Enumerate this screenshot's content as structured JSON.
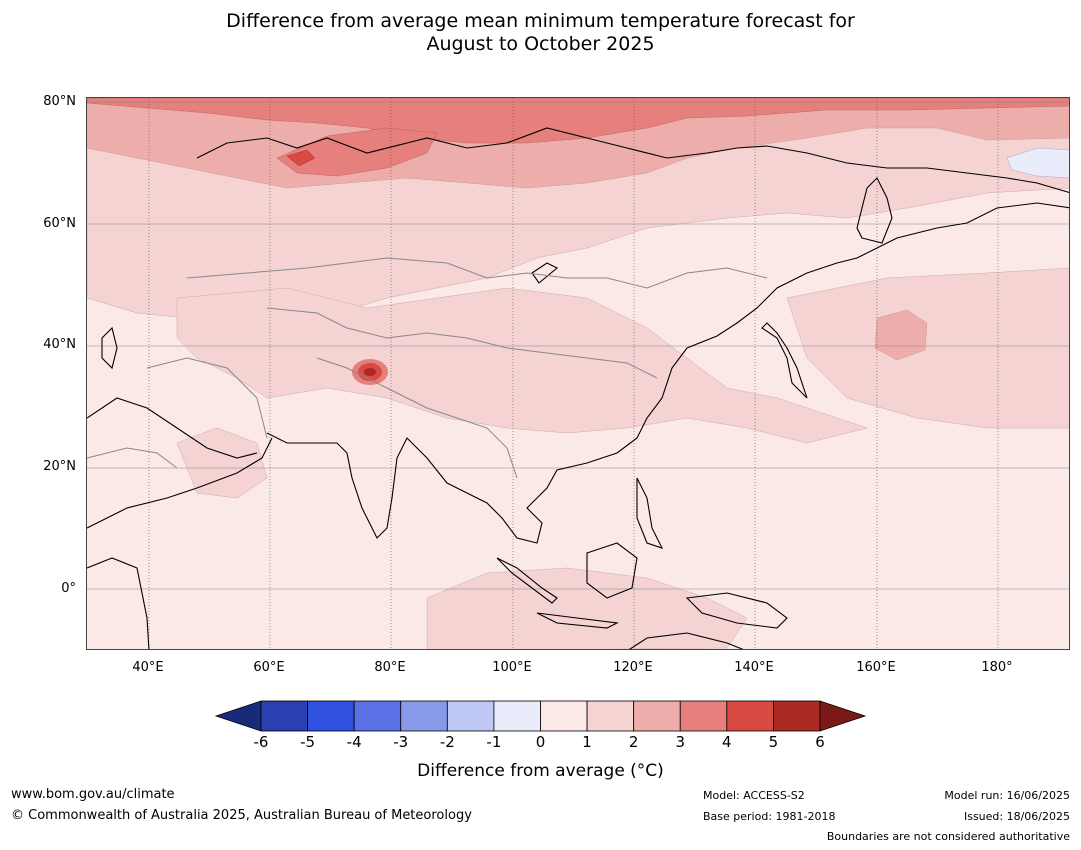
{
  "title_line1": "Difference from average mean minimum temperature forecast for",
  "title_line2": "August to October 2025",
  "lat_labels": [
    "80°N",
    "60°N",
    "40°N",
    "20°N",
    "0°"
  ],
  "lon_labels": [
    "40°E",
    "60°E",
    "80°E",
    "100°E",
    "120°E",
    "140°E",
    "160°E",
    "180°"
  ],
  "colorbar": {
    "ticks": [
      "-6",
      "-5",
      "-4",
      "-3",
      "-2",
      "-1",
      "0",
      "1",
      "2",
      "3",
      "4",
      "5",
      "6"
    ],
    "colors": [
      "#1a2a7a",
      "#2a3fb0",
      "#3050e0",
      "#5a72e6",
      "#8899ea",
      "#bfc8f4",
      "#e8ecfb",
      "#fbe9e8",
      "#f4d3d2",
      "#edaeab",
      "#e5807c",
      "#d94a42",
      "#a82a23",
      "#7a1a17"
    ],
    "label": "Difference from average (°C)"
  },
  "footer": {
    "url": "www.bom.gov.au/climate",
    "copyright": "© Commonwealth of Australia 2025, Australian Bureau of Meteorology",
    "model": "Model: ACCESS-S2",
    "base_period": "Base period: 1981-2018",
    "model_run": "Model run: 16/06/2025",
    "issued": "Issued: 18/06/2025",
    "boundaries": "Boundaries are not considered authoritative"
  }
}
